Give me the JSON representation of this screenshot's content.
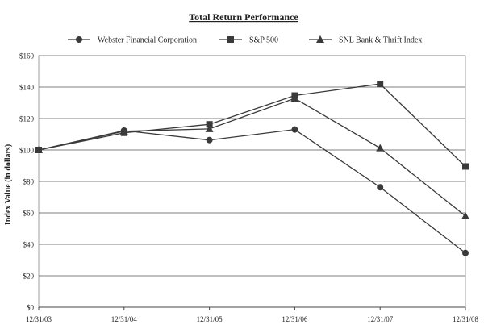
{
  "chart_data": {
    "type": "line",
    "title": "Total Return Performance",
    "xlabel": "",
    "ylabel": "Index Value (in dollars)",
    "categories": [
      "12/31/03",
      "12/31/04",
      "12/31/05",
      "12/31/06",
      "12/31/07",
      "12/31/08"
    ],
    "ylim": [
      0,
      160
    ],
    "yticks": [
      0,
      20,
      40,
      60,
      80,
      100,
      120,
      140,
      160
    ],
    "ytick_labels": [
      "$0",
      "$20",
      "$40",
      "$60",
      "$80",
      "$100",
      "$120",
      "$140",
      "$160"
    ],
    "grid": "horizontal",
    "legend_position": "top",
    "series": [
      {
        "name": "Webster Financial Corporation",
        "marker": "circle",
        "values": [
          100,
          112.3,
          106.3,
          113,
          76.3,
          34.5
        ]
      },
      {
        "name": "S&P 500",
        "marker": "square",
        "values": [
          100,
          110.9,
          116.3,
          134.6,
          142,
          89.5
        ]
      },
      {
        "name": "SNL Bank & Thrift Index",
        "marker": "triangle",
        "values": [
          100,
          111.9,
          113.4,
          132.8,
          101.2,
          58
        ]
      }
    ],
    "colors": {
      "line": "#3a3a3a",
      "grid": "#555555",
      "frame": "#888888"
    }
  }
}
